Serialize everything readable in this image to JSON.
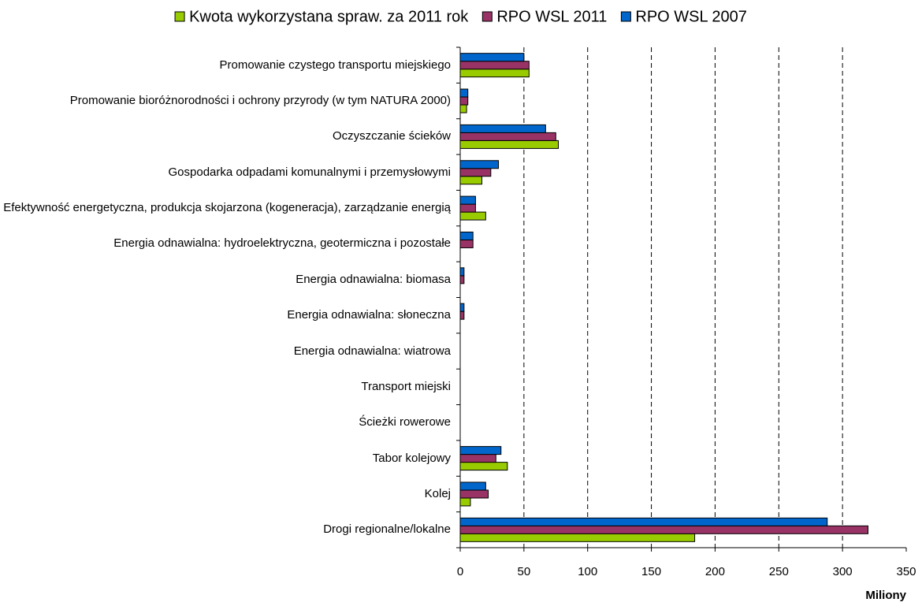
{
  "chart_data": {
    "type": "bar",
    "orientation": "horizontal",
    "categories": [
      "Promowanie czystego transportu miejskiego",
      "Promowanie bioróżnorodności i ochrony przyrody (w tym NATURA 2000)",
      "Oczyszczanie ścieków",
      "Gospodarka odpadami komunalnymi i przemysłowymi",
      "Efektywność energetyczna, produkcja skojarzona (kogeneracja), zarządzanie energią",
      "Energia odnawialna: hydroelektryczna, geotermiczna i pozostałe",
      "Energia odnawialna: biomasa",
      "Energia odnawialna: słoneczna",
      "Energia odnawialna: wiatrowa",
      "Transport miejski",
      "Ścieżki rowerowe",
      "Tabor kolejowy",
      "Kolej",
      "Drogi regionalne/lokalne"
    ],
    "series": [
      {
        "name": "Kwota wykorzystana spraw. za 2011 rok",
        "color": "#99cc00",
        "values": [
          54,
          5,
          77,
          17,
          20,
          0,
          0,
          0,
          0,
          0,
          0,
          37,
          8,
          184
        ]
      },
      {
        "name": "RPO WSL 2011",
        "color": "#993366",
        "values": [
          54,
          6,
          75,
          24,
          12,
          10,
          3,
          3,
          0,
          0,
          0,
          28,
          22,
          320
        ]
      },
      {
        "name": "RPO WSL 2007",
        "color": "#0066cc",
        "values": [
          50,
          6,
          67,
          30,
          12,
          10,
          3,
          3,
          0,
          0,
          0,
          32,
          20,
          288
        ]
      }
    ],
    "x_label": "Miliony",
    "xlim": [
      0,
      350
    ],
    "xticks": [
      0,
      50,
      100,
      150,
      200,
      250,
      300,
      350
    ],
    "grid": true,
    "legend": "top"
  }
}
